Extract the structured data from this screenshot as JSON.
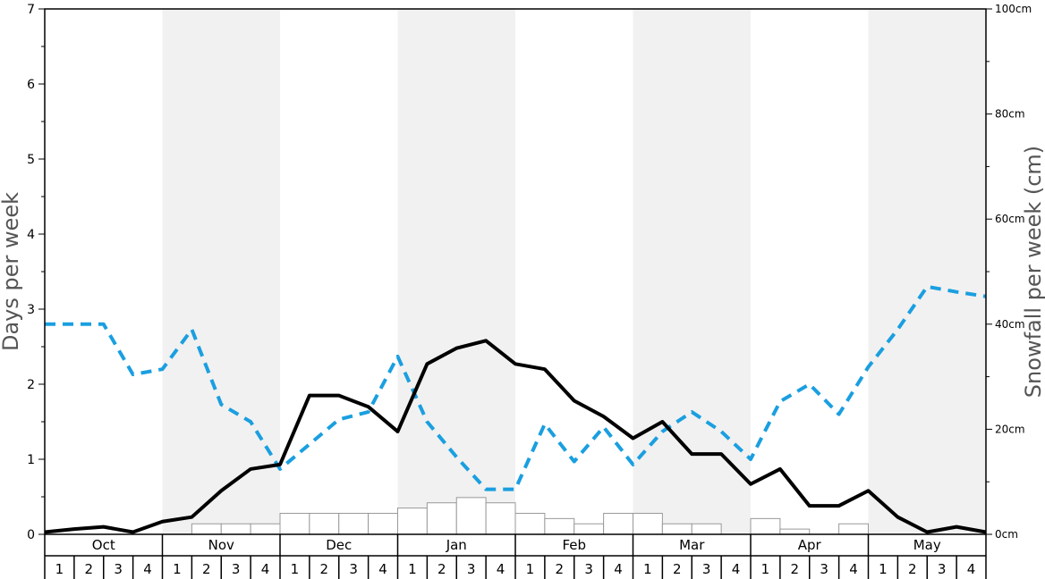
{
  "chart_data": {
    "type": "line",
    "title": "",
    "ylabel_left": "Days per week",
    "ylabel_right": "Snowfall per week (cm)",
    "ylim_left": [
      0,
      7
    ],
    "ylim_right": [
      0,
      100
    ],
    "left_ticks": [
      "0",
      "1",
      "2",
      "3",
      "4",
      "5",
      "6",
      "7"
    ],
    "right_ticks": [
      "0cm",
      "20cm",
      "40cm",
      "60cm",
      "80cm",
      "100cm"
    ],
    "months": [
      "Oct",
      "Nov",
      "Dec",
      "Jan",
      "Feb",
      "Mar",
      "Apr",
      "May"
    ],
    "weeks": [
      "1",
      "2",
      "3",
      "4"
    ],
    "shaded_months": [
      "Nov",
      "Jan",
      "Mar",
      "May"
    ],
    "colors": {
      "snow_days_line": "#000000",
      "other_days_line": "#1a9fe0",
      "snowfall_bars_fill": "#ffffff",
      "snowfall_bars_stroke": "#999999",
      "shade": "#f1f1f1"
    },
    "series": [
      {
        "key": "snow_days",
        "style": "solid-black",
        "values": [
          0.03,
          0.07,
          0.1,
          0.03,
          0.17,
          0.23,
          0.58,
          0.87,
          0.93,
          1.85,
          1.85,
          1.7,
          1.37,
          2.27,
          2.48,
          2.58,
          2.27,
          2.2,
          1.78,
          1.57,
          1.28,
          1.5,
          1.07,
          1.07,
          0.67,
          0.87,
          0.38,
          0.38,
          0.58,
          0.23,
          0.03,
          0.1,
          0.03
        ]
      },
      {
        "key": "other_days",
        "style": "dashed-blue",
        "values": [
          2.8,
          2.8,
          2.8,
          2.13,
          2.2,
          2.73,
          1.73,
          1.5,
          0.87,
          1.2,
          1.53,
          1.63,
          2.37,
          1.5,
          1.03,
          0.6,
          0.6,
          1.47,
          0.97,
          1.43,
          0.93,
          1.37,
          1.63,
          1.37,
          1.0,
          1.77,
          2.0,
          1.6,
          2.23,
          2.73,
          3.3,
          3.23,
          3.17
        ]
      },
      {
        "key": "snowfall_cm",
        "style": "bars",
        "values": [
          0,
          0,
          0,
          0,
          0,
          2,
          2,
          2,
          4,
          4,
          4,
          4,
          5,
          6,
          7,
          6,
          4,
          3,
          2,
          4,
          4,
          2,
          2,
          0,
          3,
          1,
          0,
          2,
          0,
          0,
          0,
          0
        ]
      }
    ]
  }
}
